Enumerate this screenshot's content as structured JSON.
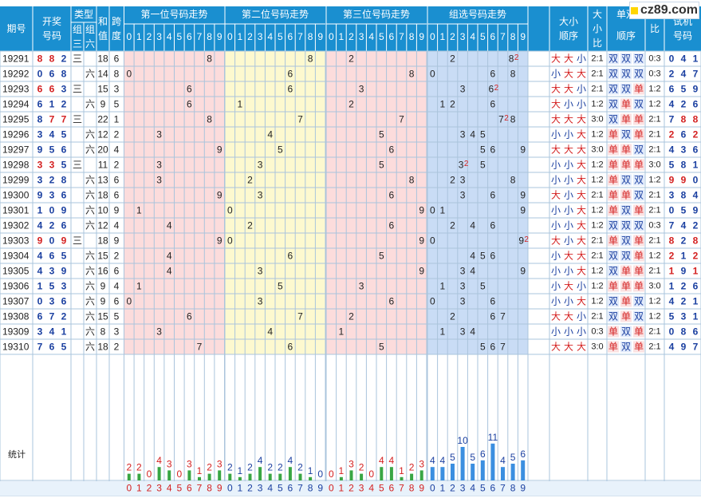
{
  "header": {
    "period": "期号",
    "draw": "开奖号码",
    "type": "类型",
    "type_g3": "组三",
    "type_g6": "组六",
    "sum": "和值",
    "span": "跨度",
    "pos1": "第一位号码走势",
    "pos2": "第二位号码走势",
    "pos3": "第三位号码走势",
    "group": "组选号码走势",
    "bs_order": "大小顺序",
    "bs_ratio": "大小比",
    "oe_order": "单双顺序",
    "oe_ratio": "单双比",
    "trial": "试机号码"
  },
  "footer_label": "统计",
  "watermark": "cz89.com",
  "labels": {
    "big": "大",
    "small": "小",
    "odd": "单",
    "even": "双",
    "g3": "三",
    "g6": "六"
  },
  "colors": {
    "header_bg": "#1a8fd0",
    "grid": "#aac4dc",
    "pos1_bg": "#fcdcdc",
    "pos2_bg": "#fdf9cf",
    "pos3_bg": "#fcdcdc",
    "group_bg": "#c9dcf5",
    "bar_green": "#39a644",
    "bar_blue": "#3b8fe0",
    "num_red": "#d42020",
    "num_blue": "#1a3fa0"
  },
  "chart_data": {
    "type": "table",
    "rows": [
      {
        "period": "19291",
        "draw": [
          8,
          8,
          2
        ],
        "type": "g3",
        "sum": 18,
        "span": 6,
        "bs": "大大小",
        "bs_ratio": "2:1",
        "oe": "双双双",
        "oe_ratio": "0:3",
        "trial": [
          0,
          4,
          1
        ]
      },
      {
        "period": "19292",
        "draw": [
          0,
          6,
          8
        ],
        "type": "g6",
        "sum": 14,
        "span": 8,
        "bs": "小大大",
        "bs_ratio": "2:1",
        "oe": "双双双",
        "oe_ratio": "0:3",
        "trial": [
          2,
          4,
          7
        ]
      },
      {
        "period": "19293",
        "draw": [
          6,
          6,
          3
        ],
        "type": "g3",
        "sum": 15,
        "span": 3,
        "bs": "大大小",
        "bs_ratio": "2:1",
        "oe": "双双单",
        "oe_ratio": "1:2",
        "trial": [
          6,
          5,
          9
        ]
      },
      {
        "period": "19294",
        "draw": [
          6,
          1,
          2
        ],
        "type": "g6",
        "sum": 9,
        "span": 5,
        "bs": "大小小",
        "bs_ratio": "1:2",
        "oe": "双单双",
        "oe_ratio": "1:2",
        "trial": [
          4,
          2,
          6
        ]
      },
      {
        "period": "19295",
        "draw": [
          8,
          7,
          7
        ],
        "type": "g3",
        "sum": 22,
        "span": 1,
        "bs": "大大大",
        "bs_ratio": "3:0",
        "oe": "双单单",
        "oe_ratio": "2:1",
        "trial": [
          7,
          8,
          8
        ]
      },
      {
        "period": "19296",
        "draw": [
          3,
          4,
          5
        ],
        "type": "g6",
        "sum": 12,
        "span": 2,
        "bs": "小小大",
        "bs_ratio": "1:2",
        "oe": "单双单",
        "oe_ratio": "2:1",
        "trial": [
          2,
          6,
          2
        ]
      },
      {
        "period": "19297",
        "draw": [
          9,
          5,
          6
        ],
        "type": "g6",
        "sum": 20,
        "span": 4,
        "bs": "大大大",
        "bs_ratio": "3:0",
        "oe": "单单双",
        "oe_ratio": "2:1",
        "trial": [
          4,
          3,
          6
        ]
      },
      {
        "period": "19298",
        "draw": [
          3,
          3,
          5
        ],
        "type": "g3",
        "sum": 11,
        "span": 2,
        "bs": "小小大",
        "bs_ratio": "1:2",
        "oe": "单单单",
        "oe_ratio": "3:0",
        "trial": [
          5,
          8,
          1
        ]
      },
      {
        "period": "19299",
        "draw": [
          3,
          2,
          8
        ],
        "type": "g6",
        "sum": 13,
        "span": 6,
        "bs": "小小大",
        "bs_ratio": "1:2",
        "oe": "单双双",
        "oe_ratio": "1:2",
        "trial": [
          9,
          9,
          0
        ]
      },
      {
        "period": "19300",
        "draw": [
          9,
          3,
          6
        ],
        "type": "g6",
        "sum": 18,
        "span": 6,
        "bs": "大小大",
        "bs_ratio": "2:1",
        "oe": "单单双",
        "oe_ratio": "2:1",
        "trial": [
          3,
          8,
          4
        ]
      },
      {
        "period": "19301",
        "draw": [
          1,
          0,
          9
        ],
        "type": "g6",
        "sum": 10,
        "span": 9,
        "bs": "小小大",
        "bs_ratio": "1:2",
        "oe": "单双单",
        "oe_ratio": "2:1",
        "trial": [
          0,
          5,
          9
        ]
      },
      {
        "period": "19302",
        "draw": [
          4,
          2,
          6
        ],
        "type": "g6",
        "sum": 12,
        "span": 4,
        "bs": "小小大",
        "bs_ratio": "1:2",
        "oe": "双双双",
        "oe_ratio": "0:3",
        "trial": [
          7,
          4,
          2
        ]
      },
      {
        "period": "19303",
        "draw": [
          9,
          0,
          9
        ],
        "type": "g3",
        "sum": 18,
        "span": 9,
        "bs": "大小大",
        "bs_ratio": "2:1",
        "oe": "单双单",
        "oe_ratio": "2:1",
        "trial": [
          8,
          2,
          8
        ]
      },
      {
        "period": "19304",
        "draw": [
          4,
          6,
          5
        ],
        "type": "g6",
        "sum": 15,
        "span": 2,
        "bs": "小大大",
        "bs_ratio": "2:1",
        "oe": "双双单",
        "oe_ratio": "1:2",
        "trial": [
          2,
          1,
          2
        ]
      },
      {
        "period": "19305",
        "draw": [
          4,
          3,
          9
        ],
        "type": "g6",
        "sum": 16,
        "span": 6,
        "bs": "小小大",
        "bs_ratio": "1:2",
        "oe": "双单单",
        "oe_ratio": "2:1",
        "trial": [
          1,
          9,
          1
        ]
      },
      {
        "period": "19306",
        "draw": [
          1,
          5,
          3
        ],
        "type": "g6",
        "sum": 9,
        "span": 4,
        "bs": "小大小",
        "bs_ratio": "1:2",
        "oe": "单单单",
        "oe_ratio": "3:0",
        "trial": [
          1,
          2,
          6
        ]
      },
      {
        "period": "19307",
        "draw": [
          0,
          3,
          6
        ],
        "type": "g6",
        "sum": 9,
        "span": 6,
        "bs": "小小大",
        "bs_ratio": "1:2",
        "oe": "双单双",
        "oe_ratio": "1:2",
        "trial": [
          4,
          2,
          1
        ]
      },
      {
        "period": "19308",
        "draw": [
          6,
          7,
          2
        ],
        "type": "g6",
        "sum": 15,
        "span": 5,
        "bs": "大大小",
        "bs_ratio": "2:1",
        "oe": "双单双",
        "oe_ratio": "1:2",
        "trial": [
          5,
          3,
          1
        ]
      },
      {
        "period": "19309",
        "draw": [
          3,
          4,
          1
        ],
        "type": "g6",
        "sum": 8,
        "span": 3,
        "bs": "小小小",
        "bs_ratio": "0:3",
        "oe": "单双单",
        "oe_ratio": "2:1",
        "trial": [
          0,
          8,
          6
        ]
      },
      {
        "period": "19310",
        "draw": [
          7,
          6,
          5
        ],
        "type": "g6",
        "sum": 18,
        "span": 2,
        "bs": "大大大",
        "bs_ratio": "3:0",
        "oe": "单双单",
        "oe_ratio": "2:1",
        "trial": [
          4,
          9,
          7
        ]
      }
    ],
    "digit_axis": [
      0,
      1,
      2,
      3,
      4,
      5,
      6,
      7,
      8,
      9
    ],
    "stats": {
      "pos1": [
        2,
        2,
        0,
        4,
        3,
        0,
        3,
        1,
        2,
        3
      ],
      "pos2": [
        2,
        1,
        2,
        4,
        2,
        2,
        4,
        2,
        1,
        0
      ],
      "pos3": [
        0,
        1,
        3,
        2,
        0,
        4,
        4,
        1,
        2,
        3
      ],
      "group": [
        4,
        4,
        5,
        10,
        5,
        6,
        11,
        4,
        5,
        6
      ]
    }
  }
}
